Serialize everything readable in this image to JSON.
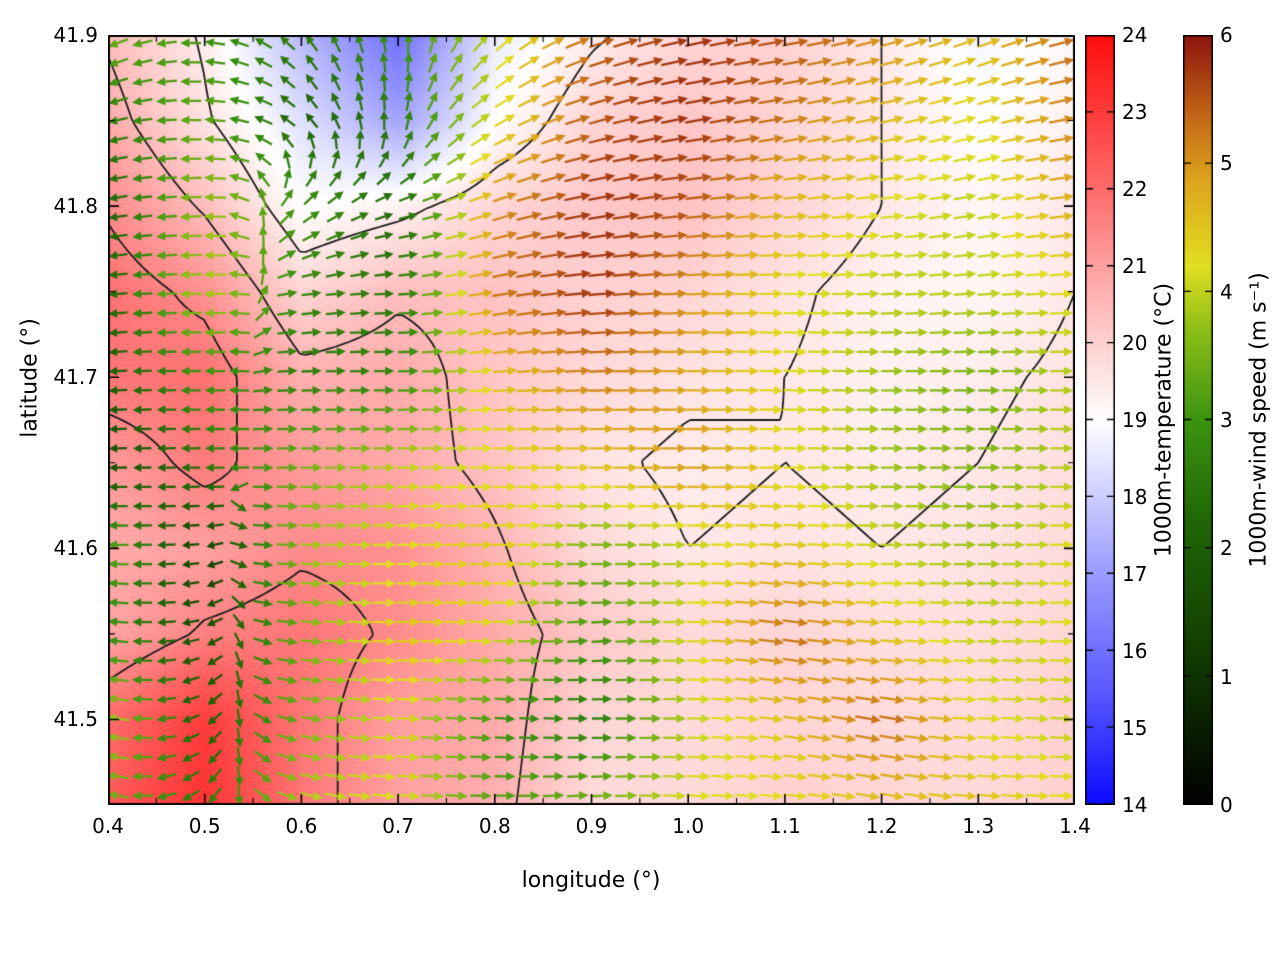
{
  "figure": {
    "background": "#ffffff"
  },
  "chart_data": {
    "type": "heatmap+quiver+contour",
    "title": "",
    "xlabel": "longitude (°)",
    "ylabel": "latitude (°)",
    "xlim": [
      0.4,
      1.4
    ],
    "ylim": [
      41.45,
      41.9
    ],
    "xtick_values": [
      0.4,
      0.5,
      0.6,
      0.7,
      0.8,
      0.9,
      1.0,
      1.1,
      1.2,
      1.3,
      1.4
    ],
    "xtick_labels": [
      "0.4",
      "0.5",
      "0.6",
      "0.7",
      "0.8",
      "0.9",
      "1.0",
      "1.1",
      "1.2",
      "1.3",
      "1.4"
    ],
    "ytick_values": [
      41.5,
      41.6,
      41.7,
      41.8,
      41.9
    ],
    "ytick_labels": [
      "41.5",
      "41.6",
      "41.7",
      "41.8",
      "41.9"
    ],
    "grid_on": false,
    "legend": "none",
    "contour_levels": [
      19.5,
      20.5,
      21.5
    ],
    "contour_color": "#1b1b1b",
    "colorbars": [
      {
        "label": "1000m-temperature (°C)",
        "min": 14,
        "max": 24,
        "tick_values": [
          14,
          15,
          16,
          17,
          18,
          19,
          20,
          21,
          22,
          23,
          24
        ],
        "tick_labels": [
          "14",
          "15",
          "16",
          "17",
          "18",
          "19",
          "20",
          "21",
          "22",
          "23",
          "24"
        ],
        "stops": [
          [
            14,
            "#0a0aff"
          ],
          [
            15.5,
            "#5a5aff"
          ],
          [
            17,
            "#9a9aff"
          ],
          [
            18.3,
            "#dcdcff"
          ],
          [
            19,
            "#ffffff"
          ],
          [
            19.7,
            "#ffdede"
          ],
          [
            20.8,
            "#ffaaaa"
          ],
          [
            22,
            "#ff6b6b"
          ],
          [
            23,
            "#ff3b3b"
          ],
          [
            24,
            "#ff0d0d"
          ]
        ]
      },
      {
        "label": "1000m-wind speed (m s⁻¹)",
        "min": 0,
        "max": 6,
        "tick_values": [
          0,
          1,
          2,
          3,
          4,
          5,
          6
        ],
        "tick_labels": [
          "0",
          "1",
          "2",
          "3",
          "4",
          "5",
          "6"
        ],
        "stops": [
          [
            0,
            "#000000"
          ],
          [
            1.2,
            "#123d02"
          ],
          [
            2.2,
            "#1f6606"
          ],
          [
            3,
            "#3c9410"
          ],
          [
            3.7,
            "#8cbe17"
          ],
          [
            4.2,
            "#e2df20"
          ],
          [
            4.9,
            "#dca11d"
          ],
          [
            5.4,
            "#c06316"
          ],
          [
            6,
            "#8e150d"
          ]
        ]
      }
    ],
    "field_grid": {
      "lon": [
        0.4,
        0.5,
        0.6,
        0.7,
        0.8,
        0.9,
        1.0,
        1.1,
        1.2,
        1.3,
        1.4
      ],
      "lat": [
        41.9,
        41.85,
        41.8,
        41.75,
        41.7,
        41.65,
        41.6,
        41.55,
        41.5,
        41.45
      ],
      "temperature": [
        [
          20.4,
          19.4,
          17.6,
          16.0,
          18.6,
          19.4,
          19.9,
          20.0,
          19.5,
          18.8,
          19.2
        ],
        [
          20.8,
          19.6,
          18.4,
          17.2,
          19.0,
          19.9,
          20.2,
          19.9,
          19.5,
          19.0,
          19.3
        ],
        [
          21.4,
          20.4,
          19.0,
          19.3,
          19.9,
          20.2,
          20.3,
          19.9,
          19.5,
          19.2,
          19.5
        ],
        [
          21.9,
          21.3,
          19.9,
          20.4,
          20.3,
          20.0,
          19.9,
          19.6,
          19.3,
          19.2,
          19.5
        ],
        [
          21.8,
          21.9,
          20.7,
          20.8,
          20.2,
          19.8,
          19.6,
          19.5,
          19.3,
          19.4,
          19.6
        ],
        [
          21.1,
          21.7,
          21.1,
          20.8,
          20.3,
          19.6,
          19.4,
          19.5,
          19.4,
          19.5,
          19.7
        ],
        [
          20.8,
          21.0,
          21.4,
          21.3,
          20.6,
          19.8,
          19.5,
          19.6,
          19.5,
          19.6,
          19.8
        ],
        [
          20.9,
          21.6,
          21.8,
          21.4,
          20.8,
          20.2,
          19.8,
          19.9,
          19.7,
          19.7,
          19.9
        ],
        [
          22.0,
          23.0,
          21.8,
          21.0,
          20.8,
          19.9,
          19.8,
          19.9,
          19.8,
          19.8,
          20.0
        ],
        [
          22.4,
          23.2,
          21.8,
          21.0,
          20.7,
          19.8,
          19.8,
          20.0,
          19.9,
          19.8,
          20.0
        ]
      ],
      "wind_speed": [
        [
          3.4,
          3.0,
          2.6,
          3.0,
          4.0,
          5.4,
          5.8,
          5.5,
          5.0,
          4.6,
          5.4
        ],
        [
          2.6,
          3.4,
          2.1,
          2.6,
          4.2,
          5.5,
          5.8,
          5.2,
          4.6,
          4.2,
          5.2
        ],
        [
          2.1,
          3.8,
          3.0,
          2.2,
          5.0,
          5.8,
          5.5,
          4.6,
          4.2,
          4.0,
          4.8
        ],
        [
          2.2,
          4.0,
          2.8,
          2.5,
          5.2,
          5.8,
          5.0,
          4.2,
          4.0,
          4.0,
          4.2
        ],
        [
          2.0,
          3.0,
          2.6,
          2.8,
          4.5,
          5.2,
          4.8,
          4.2,
          3.8,
          3.5,
          4.0
        ],
        [
          1.6,
          2.5,
          3.5,
          4.0,
          4.2,
          4.5,
          5.0,
          4.2,
          3.8,
          3.6,
          4.0
        ],
        [
          3.4,
          1.2,
          3.8,
          4.2,
          4.5,
          3.5,
          4.0,
          4.5,
          4.0,
          3.8,
          4.2
        ],
        [
          3.0,
          1.6,
          3.5,
          4.5,
          4.2,
          3.0,
          4.2,
          5.4,
          4.5,
          4.0,
          4.2
        ],
        [
          4.0,
          2.0,
          3.5,
          4.2,
          3.0,
          2.6,
          4.0,
          4.5,
          5.4,
          4.2,
          4.0
        ],
        [
          3.5,
          2.6,
          4.0,
          4.2,
          3.2,
          3.5,
          4.2,
          4.2,
          4.5,
          4.5,
          4.2
        ]
      ],
      "wind_dir_deg": [
        [
          205,
          175,
          130,
          95,
          45,
          20,
          12,
          10,
          15,
          20,
          15
        ],
        [
          195,
          178,
          135,
          85,
          32,
          16,
          10,
          10,
          12,
          15,
          10
        ],
        [
          190,
          182,
          40,
          15,
          18,
          10,
          6,
          5,
          6,
          10,
          6
        ],
        [
          186,
          181,
          8,
          2,
          10,
          5,
          2,
          0,
          2,
          5,
          2
        ],
        [
          184,
          180,
          2,
          0,
          5,
          2,
          0,
          358,
          0,
          0,
          0
        ],
        [
          181,
          180,
          0,
          0,
          0,
          0,
          0,
          0,
          0,
          0,
          0
        ],
        [
          179,
          188,
          358,
          0,
          0,
          358,
          0,
          356,
          0,
          0,
          0
        ],
        [
          174,
          198,
          354,
          0,
          358,
          4,
          0,
          352,
          356,
          0,
          0
        ],
        [
          170,
          212,
          350,
          358,
          356,
          0,
          0,
          352,
          350,
          358,
          356
        ],
        [
          166,
          222,
          346,
          355,
          0,
          4,
          358,
          356,
          350,
          355,
          0
        ]
      ]
    }
  }
}
